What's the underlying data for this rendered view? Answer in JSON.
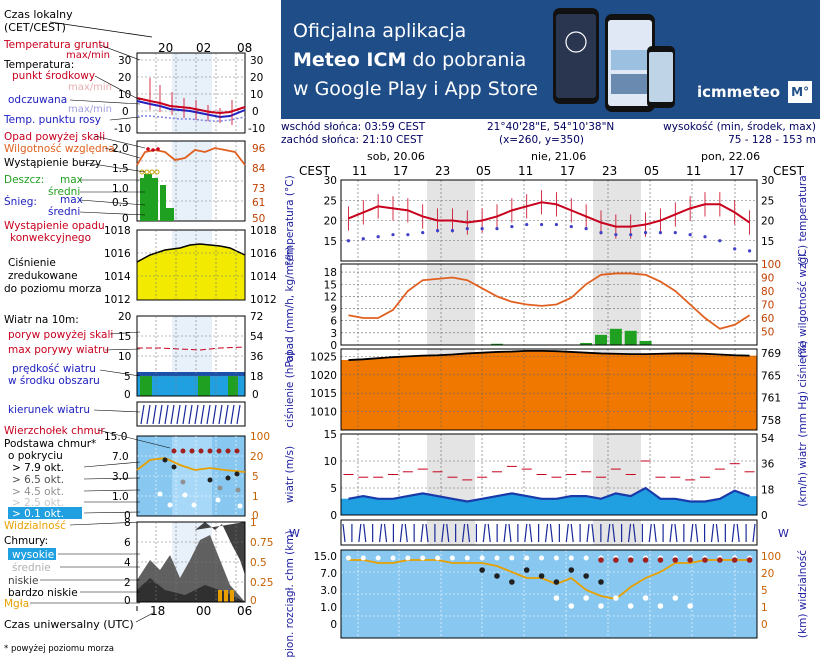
{
  "left_panel": {
    "local_time_label": "Czas lokalny",
    "local_time_zone": "(CET/CEST)",
    "local_hours": [
      "20",
      "02",
      "08"
    ],
    "temp_block": {
      "ground_temp": "Temperatura gruntu",
      "max_min_a": "max/min",
      "temperature": "Temperatura:",
      "midpoint": "punkt środkowy",
      "max_min_b": "max/min",
      "felt": "odczuwana",
      "max_min_c": "max/min",
      "dew_point": "Temp. punktu rosy",
      "y_ticks": [
        "30",
        "20",
        "10",
        "0",
        "-10"
      ]
    },
    "precip_block": {
      "precip_above": "Opad powyżej skali",
      "humidity": "Wilgotność względna",
      "storm": "Wystąpienie burzy",
      "rain": "Deszcz:",
      "rain_max": "max",
      "rain_mid": "średni",
      "snow": "Śnieg:",
      "snow_max": "max",
      "snow_mid": "średni",
      "occurrence_1": "Wystąpienie opadu",
      "occurrence_2": "konwekcyjnego",
      "left_ticks": [
        "2.0",
        "1.5",
        "1.0",
        "0.5",
        "0"
      ],
      "right_ticks": [
        "96",
        "84",
        "73",
        "61",
        "50"
      ]
    },
    "pressure_block": {
      "line1": "Ciśnienie",
      "line2": "zredukowane",
      "line3": "do poziomu morza",
      "left_ticks": [
        "1018",
        "1016",
        "1014",
        "1012"
      ],
      "right_ticks": [
        "1018",
        "1016",
        "1014",
        "1012"
      ]
    },
    "wind_block": {
      "title": "Wiatr na 10m:",
      "gust_above": "poryw powyżej skali",
      "max_gust": "max porywy wiatru",
      "speed_1": "prędkość wiatru",
      "speed_2": "w środku obszaru",
      "left_ticks": [
        "20",
        "15",
        "10",
        "5",
        "0"
      ],
      "right_ticks": [
        "72",
        "54",
        "36",
        "18",
        "0"
      ]
    },
    "wind_dir_label": "kierunek wiatru",
    "cloud_block": {
      "top": "Wierzchołek chmur",
      "base_1": "Podstawa chmur*",
      "base_2": "o pokryciu",
      "gt79": "> 7.9 okt.",
      "gt65": "> 6.5 okt.",
      "gt45": "> 4.5 okt.",
      "gt25": "> 2.5 okt.",
      "gt01": "> 0.1 okt.",
      "visibility": "Widzialność",
      "left_ticks": [
        "15.0",
        "7.0",
        "3.0",
        "1.0",
        "0"
      ],
      "right_ticks": [
        "100",
        "20",
        "5",
        "1",
        "0"
      ]
    },
    "clouds_block": {
      "title": "Chmury:",
      "high": "wysokie",
      "mid": "średnie",
      "low": "niskie",
      "very_low": "bardzo niskie",
      "fog": "Mgła",
      "left_ticks": [
        "8",
        "6",
        "4",
        "2",
        "0"
      ],
      "right_ticks": [
        "1",
        "0.75",
        "0.5",
        "0.25",
        "0"
      ]
    },
    "utc_label": "Czas uniwersalny (UTC)",
    "utc_hours": [
      "18",
      "00",
      "06"
    ],
    "footnote": "* powyżej poziomu morza"
  },
  "banner": {
    "line1": "Oficjalna aplikacja",
    "line2_brand": "Meteo ICM",
    "line2_rest": "do pobrania",
    "line3": "w Google Play i App Store",
    "logo_text": "icmmeteo",
    "logo_box": "M°"
  },
  "info": {
    "sunrise": "wschód słońca: 03:59 CEST",
    "sunset": "zachód słońca: 21:10 CEST",
    "coords": "21°40'28\"E, 54°10'38\"N",
    "grid": "(x=260,  y=350)",
    "elev_label": "wysokość (min, środek, max)",
    "elev_values": "75 - 128 - 153 m"
  },
  "chart_data": [
    {
      "type": "line",
      "title": "",
      "days": [
        "sob, 20.06",
        "nie, 21.06",
        "pon, 22.06"
      ],
      "tz_label": "CEST",
      "hour_labels": [
        "11",
        "17",
        "23",
        "05",
        "11",
        "17",
        "23",
        "05",
        "11",
        "17"
      ],
      "ylabel_left": "temperatura (°C)",
      "ylabel_right": "(°C) temperatura",
      "ylim": [
        10,
        30
      ],
      "y_ticks": [
        30,
        25,
        20,
        15
      ],
      "series": [
        {
          "name": "",
          "values": [
            20.5,
            22,
            23.5,
            23,
            22.5,
            21,
            20,
            20,
            19.5,
            20,
            21,
            22.5,
            23.5,
            24.5,
            24,
            22.5,
            21,
            19.5,
            18.5,
            18.5,
            19,
            20,
            21.5,
            23,
            24,
            24,
            22,
            19.5
          ],
          "color": "#c8001e"
        },
        {
          "name": "",
          "values": [
            15,
            15.5,
            16,
            16.5,
            16.5,
            17,
            17.5,
            17.5,
            18,
            18,
            18,
            18.5,
            19,
            19,
            19,
            18.5,
            18,
            17,
            16.5,
            16.5,
            17,
            17,
            17,
            16.5,
            16,
            15,
            13,
            12.5
          ],
          "color": "#4040c8"
        }
      ]
    },
    {
      "type": "line",
      "ylabel_left": "opad (mm/h, kg/m²/h)",
      "ylabel_right": "(%) wilgotność wzgl.",
      "ylim": [
        0,
        20
      ],
      "y_ticks": [
        18,
        15,
        12,
        9,
        6,
        3,
        0
      ],
      "y2lim": [
        40,
        100
      ],
      "y2_ticks": [
        100,
        90,
        80,
        70,
        60,
        50
      ],
      "humidity": [
        62,
        60,
        60,
        66,
        80,
        88,
        89,
        90,
        88,
        82,
        76,
        72,
        70,
        69,
        70,
        75,
        85,
        92,
        93,
        93,
        92,
        87,
        80,
        70,
        60,
        52,
        55,
        62
      ],
      "precip": [
        0,
        0,
        0,
        0,
        0,
        0,
        0,
        0,
        0,
        0,
        0.3,
        0,
        0,
        0,
        0,
        0,
        0.5,
        2.5,
        4,
        3.5,
        1,
        0,
        0,
        0,
        0,
        0,
        0,
        0
      ]
    },
    {
      "type": "area",
      "ylabel_left": "ciśnienie (hPa)",
      "ylabel_right": "(mm Hg) ciśnienie",
      "ylim": [
        1005,
        1027
      ],
      "y_ticks": [
        1025,
        1020,
        1015,
        1010
      ],
      "y2_ticks": [
        769,
        765,
        761,
        758
      ],
      "values": [
        1024,
        1024.2,
        1024.5,
        1024.8,
        1025,
        1025.2,
        1025.3,
        1025.5,
        1025.8,
        1026,
        1026.2,
        1026.3,
        1026.5,
        1026.5,
        1026.4,
        1026.2,
        1026,
        1025.8,
        1025.7,
        1025.6,
        1025.6,
        1025.7,
        1025.8,
        1025.8,
        1025.7,
        1025.5,
        1025.3,
        1025.2
      ]
    },
    {
      "type": "area",
      "ylabel_left": "wiatr (m/s)",
      "ylabel_right": "(km/h) wiatr",
      "ylim": [
        0,
        15
      ],
      "y_ticks": [
        15,
        10,
        5,
        0
      ],
      "y2_ticks": [
        54,
        36,
        18,
        0
      ],
      "speed": [
        3,
        3.5,
        3,
        3,
        3.5,
        4,
        3.5,
        3,
        2.5,
        3,
        3.5,
        4,
        3.5,
        3,
        3,
        3.5,
        3.5,
        3,
        4,
        3.5,
        5,
        3,
        3,
        2.5,
        2.5,
        3,
        4.5,
        3.5
      ],
      "gusts": [
        7.5,
        7,
        7,
        7.5,
        8,
        8.5,
        8,
        7,
        6.5,
        7,
        8,
        9,
        8.5,
        7.5,
        7,
        7.5,
        8,
        7,
        8.5,
        7.5,
        10,
        7,
        7,
        6.5,
        7,
        8.5,
        9.5,
        8
      ]
    },
    {
      "type": "scatter",
      "ylabel_left": "pion. rozciągł. chm (km)",
      "ylabel_right": "(km) widzialność",
      "y_ticks": [
        15.0,
        7.0,
        3.0,
        1.0,
        0
      ],
      "y2_ticks": [
        100,
        20,
        5,
        1,
        0
      ]
    }
  ]
}
